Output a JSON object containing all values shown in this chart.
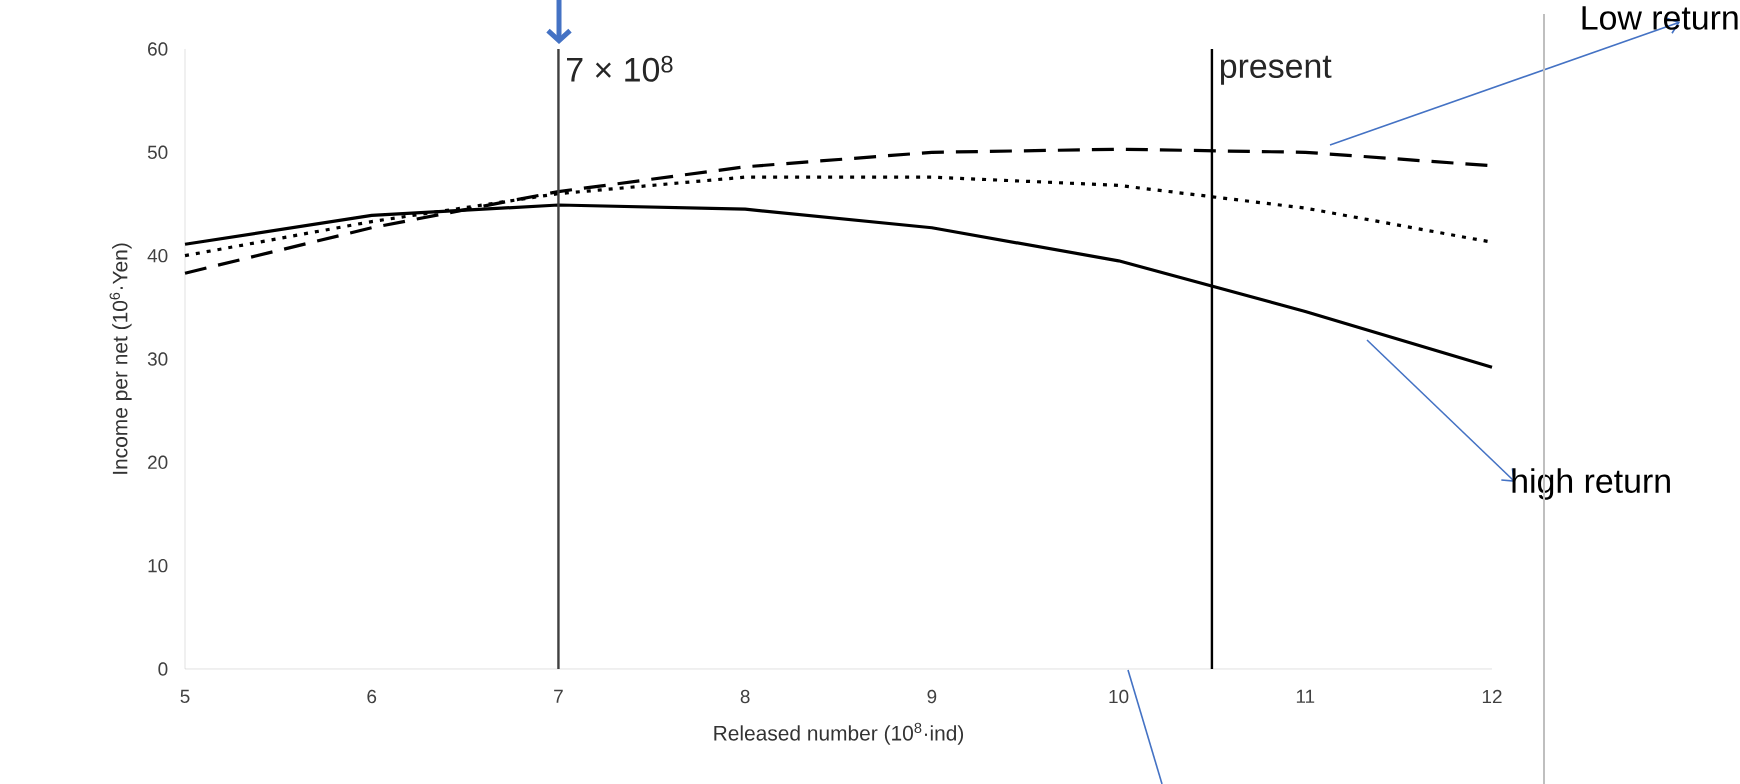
{
  "chart_data": {
    "type": "line",
    "xlabel": "Released number (10$^{8}$·ind)",
    "ylabel": "Income per net (10$^{6}$·Yen)",
    "x": [
      5,
      6,
      7,
      8,
      9,
      10,
      11,
      12
    ],
    "series": [
      {
        "name": "Low return",
        "color": "#000000",
        "line_style": "dashed",
        "values": [
          38.3,
          42.7,
          46.2,
          48.6,
          50.0,
          50.3,
          50.0,
          48.7
        ]
      },
      {
        "color": "#000000",
        "line_style": "dotted",
        "values": [
          40.0,
          43.3,
          46.0,
          47.6,
          47.6,
          46.8,
          44.6,
          41.3
        ]
      },
      {
        "name": "high return",
        "color": "#000000",
        "line_style": "solid",
        "values": [
          41.1,
          43.9,
          44.9,
          44.5,
          42.7,
          39.5,
          34.6,
          29.2
        ]
      }
    ],
    "xlim": [
      5,
      12
    ],
    "ylim": [
      0,
      60
    ],
    "xticks": [
      5,
      6,
      7,
      8,
      9,
      10,
      11,
      12
    ],
    "yticks": [
      0,
      10,
      20,
      30,
      40,
      50,
      60
    ],
    "ref_lines": [
      {
        "axis": "x",
        "value": 7,
        "label": "7 × 10$^{8}$",
        "color": "#404040"
      },
      {
        "axis": "x",
        "value": 10.5,
        "label": "present",
        "color": "#000000"
      }
    ],
    "marker": "none",
    "grid": false
  }
}
